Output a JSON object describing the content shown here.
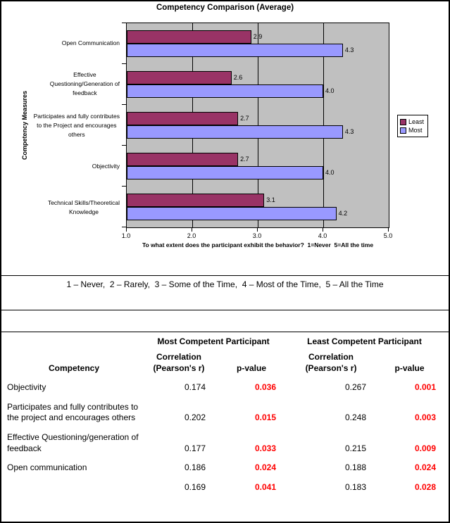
{
  "chart": {
    "title": "Competency Comparison (Average)",
    "y_axis_title": "Competency Measures",
    "x_axis_title": "To what extent does the participant exhibit the behavior?  1=Never  5=All the time",
    "category_label_lines": [
      [
        "Open Communication"
      ],
      [
        "Effective",
        "Questioning/Generation of",
        "feedback"
      ],
      [
        "Participates and fully contributes",
        "to the Project and encourages",
        "others"
      ],
      [
        "Objectivity"
      ],
      [
        "Technical Skills/Theoretical",
        "Knowledge"
      ]
    ]
  },
  "chart_data": {
    "type": "bar",
    "orientation": "horizontal",
    "title": "Competency Comparison (Average)",
    "categories": [
      "Open Communication",
      "Effective Questioning/Generation of feedback",
      "Participates and fully contributes to the Project and encourages others",
      "Objectivity",
      "Technical Skills/Theoretical Knowledge"
    ],
    "series": [
      {
        "name": "Least",
        "color": "#993366",
        "values": [
          2.9,
          2.6,
          2.7,
          2.7,
          3.1
        ]
      },
      {
        "name": "Most",
        "color": "#9999FF",
        "values": [
          4.3,
          4.0,
          4.3,
          4.0,
          4.2
        ]
      }
    ],
    "xlabel": "To what extent does the participant exhibit the behavior?  1=Never  5=All the time",
    "ylabel": "Competency Measures",
    "xlim": [
      1.0,
      5.0
    ],
    "x_ticks": [
      1.0,
      2.0,
      3.0,
      4.0,
      5.0
    ],
    "grid": "vertical",
    "legend_position": "right",
    "plot_background": "#C0C0C0",
    "bar_labels": true
  },
  "scale_note": "1 – Never,  2 – Rarely,  3 – Some of the Time,  4 – Most of the Time,  5 – All the Time",
  "stats_table": {
    "group_headers": [
      "Most Competent Participant",
      "Least Competent Participant"
    ],
    "columns": {
      "competency": "Competency",
      "correlation": "Correlation (Pearson's r)",
      "p_value": "p-value"
    },
    "p_value_color": "#FF0000",
    "rows": [
      {
        "competency": "Objectivity",
        "most_r": "0.174",
        "most_p": "0.036",
        "least_r": "0.267",
        "least_p": "0.001"
      },
      {
        "competency": "Participates and fully contributes to the project and encourages others",
        "most_r": "0.202",
        "most_p": "0.015",
        "least_r": "0.248",
        "least_p": "0.003"
      },
      {
        "competency": "Effective Questioning/generation of feedback",
        "most_r": "0.177",
        "most_p": "0.033",
        "least_r": "0.215",
        "least_p": "0.009"
      },
      {
        "competency": "Open communication",
        "most_r": "0.186",
        "most_p": "0.024",
        "least_r": "0.188",
        "least_p": "0.024"
      },
      {
        "competency": "",
        "most_r": "0.169",
        "most_p": "0.041",
        "least_r": "0.183",
        "least_p": "0.028"
      }
    ]
  }
}
